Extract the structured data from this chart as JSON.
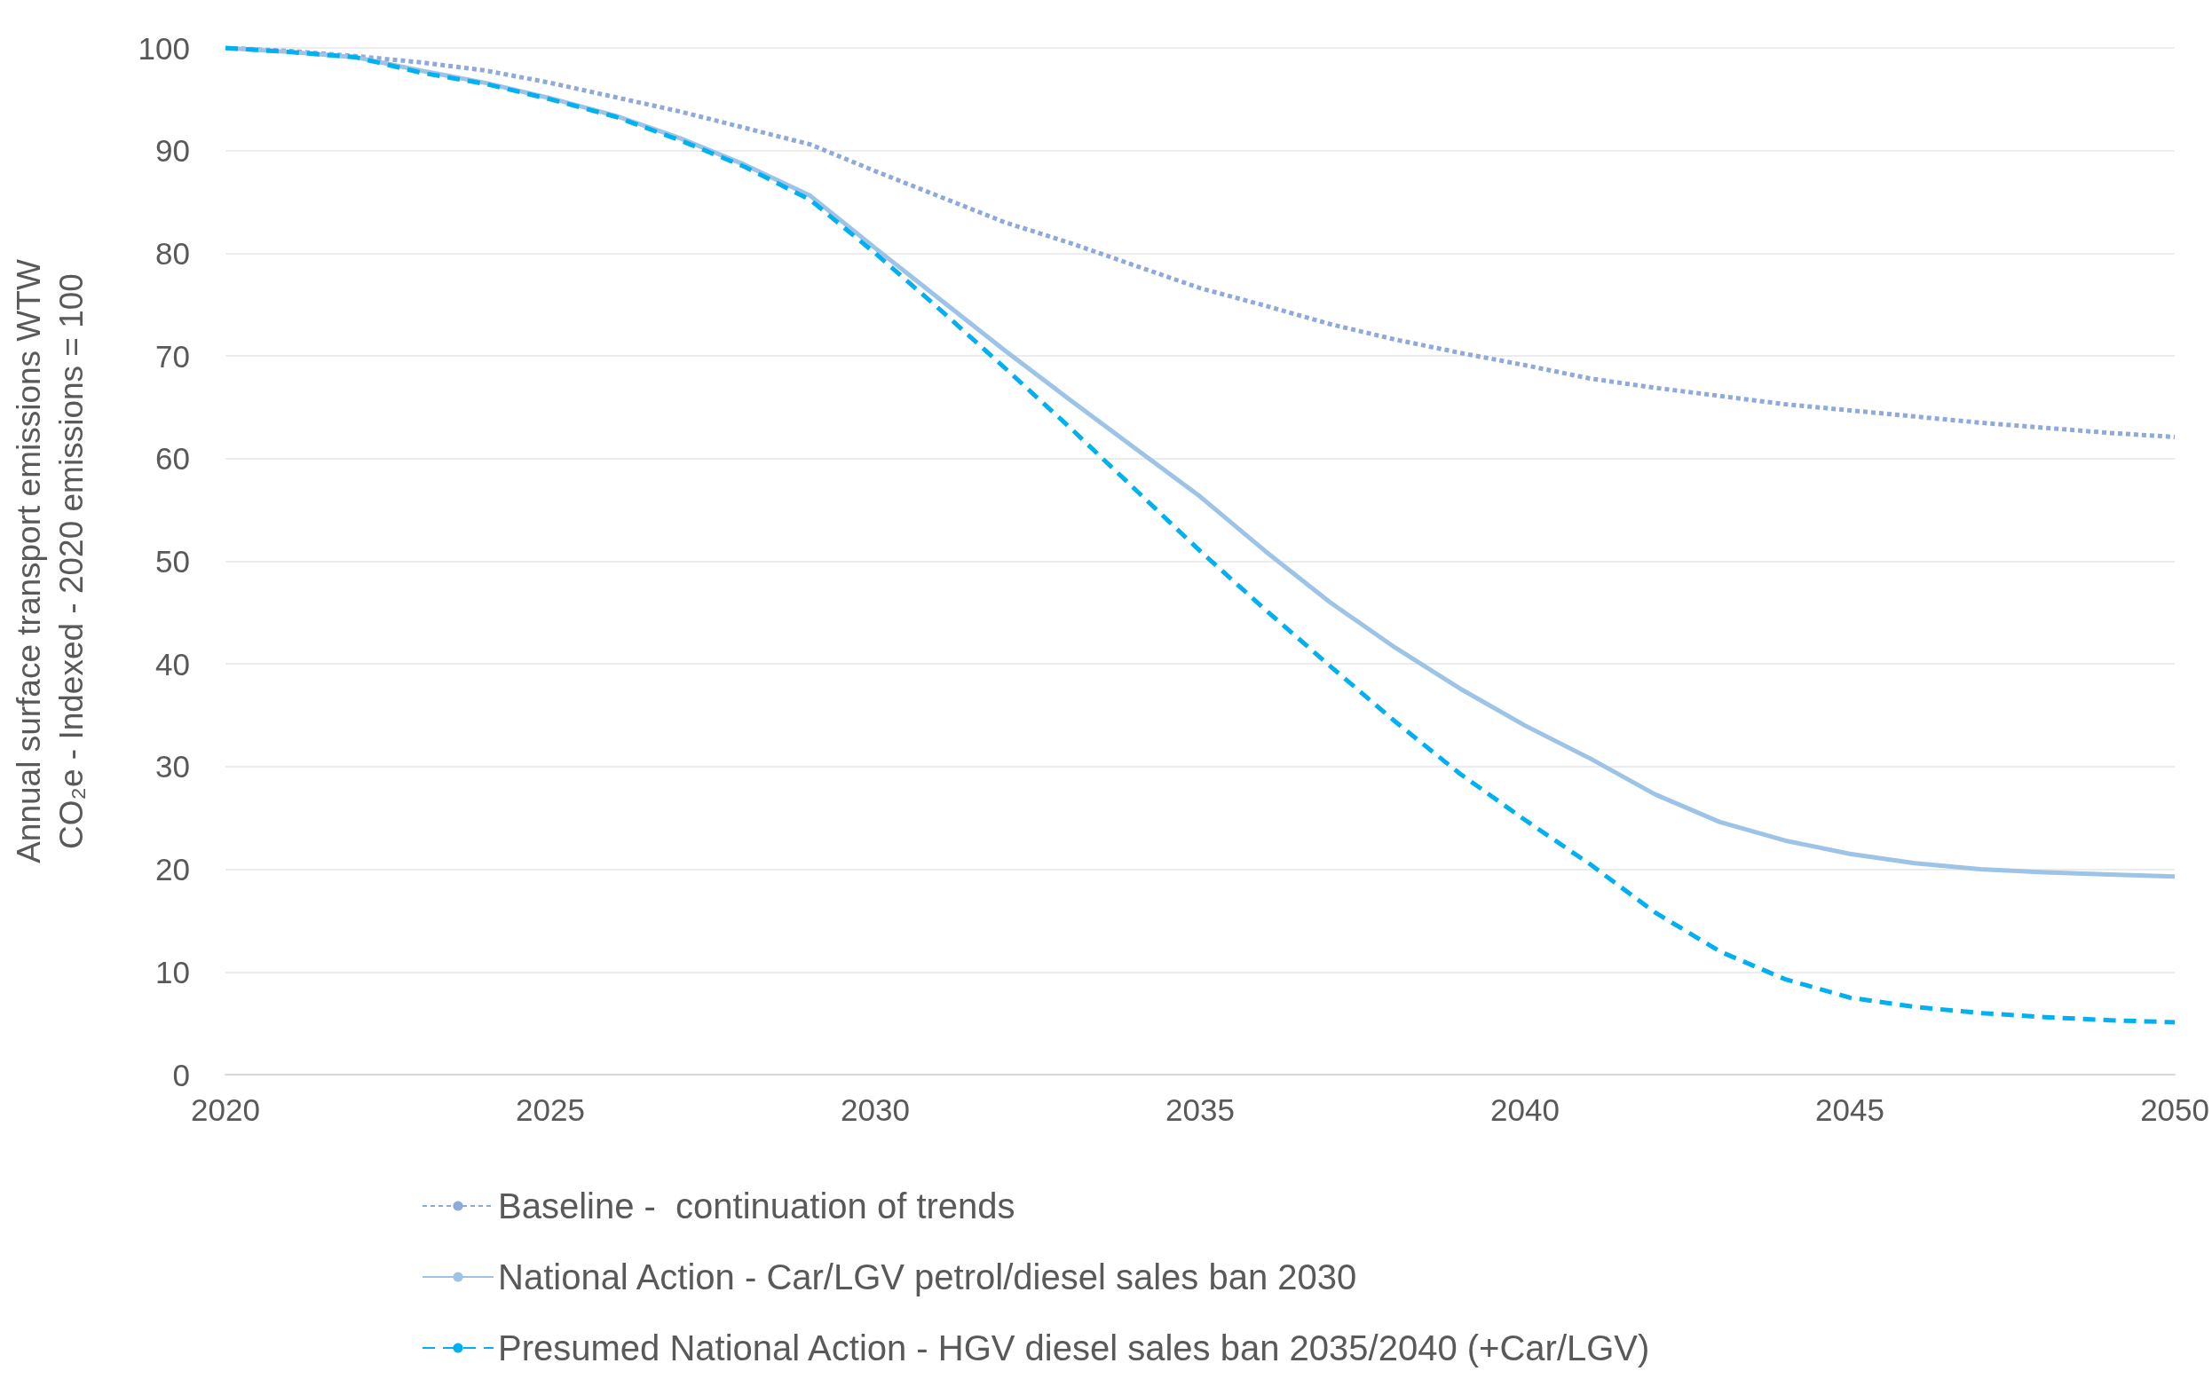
{
  "chart_data": {
    "type": "line",
    "ylabel": "Annual surface transport emissions WTW CO₂e - Indexed - 2020 emissions = 100",
    "x": [
      2020,
      2021,
      2022,
      2023,
      2024,
      2025,
      2026,
      2027,
      2028,
      2029,
      2030,
      2031,
      2032,
      2033,
      2034,
      2035,
      2036,
      2037,
      2038,
      2039,
      2040,
      2041,
      2042,
      2043,
      2044,
      2045,
      2046,
      2047,
      2048,
      2049,
      2050
    ],
    "series": [
      {
        "name": "Baseline -  continuation of trends",
        "color": "#8eaadb",
        "line_style": "dotted",
        "values": [
          100,
          99.7,
          99.2,
          98.6,
          97.8,
          96.6,
          95.2,
          93.8,
          92.2,
          90.6,
          88,
          85.5,
          83,
          81,
          78.8,
          76.6,
          74.9,
          73.1,
          71.6,
          70.3,
          69.1,
          67.8,
          66.9,
          66.1,
          65.3,
          64.7,
          64.1,
          63.5,
          63,
          62.5,
          62.1
        ]
      },
      {
        "name": "National Action - Car/LGV petrol/diesel sales ban 2030",
        "color": "#9dc3e6",
        "line_style": "solid",
        "values": [
          100,
          99.6,
          99.1,
          97.8,
          96.6,
          95.1,
          93.4,
          91.2,
          88.6,
          85.6,
          80.5,
          75.5,
          70.5,
          65.7,
          61,
          56.3,
          51,
          46,
          41.6,
          37.6,
          34,
          30.8,
          27.3,
          24.6,
          22.8,
          21.5,
          20.6,
          20,
          19.7,
          19.5,
          19.3
        ]
      },
      {
        "name": "Presumed National Action - HGV diesel sales ban 2035/2040 (+Car/LGV)",
        "color": "#00b0f0",
        "line_style": "dashed",
        "values": [
          100,
          99.6,
          99.1,
          97.6,
          96.5,
          95,
          93.3,
          91,
          88.4,
          85.2,
          80,
          74.5,
          68.8,
          63,
          57,
          51,
          45.3,
          39.8,
          34.4,
          29.3,
          24.8,
          20.5,
          15.8,
          12,
          9.3,
          7.5,
          6.6,
          6,
          5.6,
          5.3,
          5.1
        ]
      }
    ],
    "xlim": [
      2020,
      2050
    ],
    "xticks": [
      2020,
      2025,
      2030,
      2035,
      2040,
      2045,
      2050
    ],
    "ylim": [
      0,
      100
    ],
    "yticks": [
      0,
      10,
      20,
      30,
      40,
      50,
      60,
      70,
      80,
      90,
      100
    ],
    "grid": "y",
    "legend": "bottom",
    "marker": "none"
  }
}
